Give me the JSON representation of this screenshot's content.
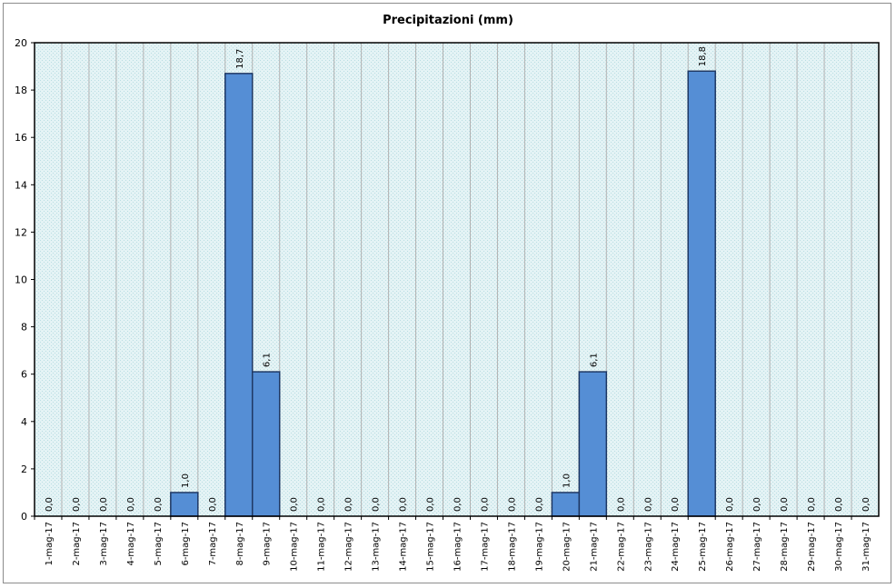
{
  "chart_data": {
    "type": "bar",
    "title": "Precipitazioni (mm)",
    "xlabel": "",
    "ylabel": "",
    "ylim": [
      0,
      20
    ],
    "yticks": [
      "0",
      "2",
      "4",
      "6",
      "8",
      "10",
      "12",
      "14",
      "16",
      "18",
      "20"
    ],
    "grid": true,
    "legend": "none",
    "colors": {
      "bar": "#558ed5",
      "bar_border": "#1f3864",
      "plot_bg": "#dff1f3",
      "grid": "#b3b3b3",
      "axis": "#000000"
    },
    "categories": [
      "1-mag-17",
      "2-mag-17",
      "3-mag-17",
      "4-mag-17",
      "5-mag-17",
      "6-mag-17",
      "7-mag-17",
      "8-mag-17",
      "9-mag-17",
      "10-mag-17",
      "11-mag-17",
      "12-mag-17",
      "13-mag-17",
      "14-mag-17",
      "15-mag-17",
      "16-mag-17",
      "17-mag-17",
      "18-mag-17",
      "19-mag-17",
      "20-mag-17",
      "21-mag-17",
      "22-mag-17",
      "23-mag-17",
      "24-mag-17",
      "25-mag-17",
      "26-mag-17",
      "27-mag-17",
      "28-mag-17",
      "29-mag-17",
      "30-mag-17",
      "31-mag-17"
    ],
    "values": [
      0,
      0,
      0,
      0,
      0,
      1.0,
      0,
      18.7,
      6.1,
      0,
      0,
      0,
      0,
      0,
      0,
      0,
      0,
      0,
      0,
      1.0,
      6.1,
      0,
      0,
      0,
      18.8,
      0,
      0,
      0,
      0,
      0,
      0
    ],
    "data_labels": [
      "0,0",
      "0,0",
      "0,0",
      "0,0",
      "0,0",
      "1,0",
      "0,0",
      "18,7",
      "6,1",
      "0,0",
      "0,0",
      "0,0",
      "0,0",
      "0,0",
      "0,0",
      "0,0",
      "0,0",
      "0,0",
      "0,0",
      "1,0",
      "6,1",
      "0,0",
      "0,0",
      "0,0",
      "18,8",
      "0,0",
      "0,0",
      "0,0",
      "0,0",
      "0,0",
      "0,0"
    ]
  }
}
